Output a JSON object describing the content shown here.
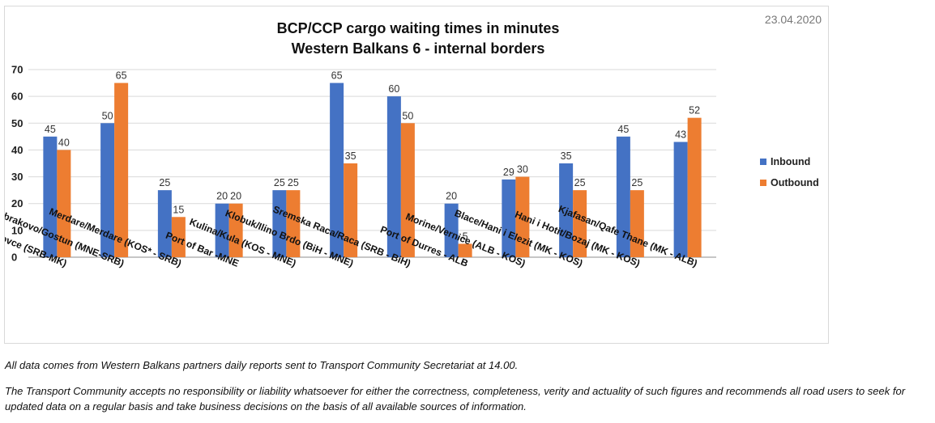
{
  "chart_data": {
    "type": "bar",
    "title": "BCP/CCP cargo waiting times in minutes",
    "subtitle": "Western Balkans 6 - internal borders",
    "date": "23.04.2020",
    "categories": [
      "Presevo/ Tabanovce (SRB-MK)",
      "Dobrakovo/Gostun (MNE-SRB)",
      "Merdare/Merdare (KOS* - SRB)",
      "Port of Bar -MNE",
      "Kulina/Kula (KOS - MNE)",
      "Klobuk/Ilino Brdo (BiH - MNE)",
      "Sremska Raca/Raca (SRB - BiH)",
      "Port of Durres - ALB",
      "Morine/Vernice (ALB - KOS)",
      "Blace/Hani i Elezit (MK - KOS)",
      "Hani i Hotit/Bozaj (MK - KOS)",
      "Kjafasan/Qafe Thane (MK - ALB)"
    ],
    "series": [
      {
        "name": "Inbound",
        "color": "#4472c4",
        "values": [
          45,
          50,
          25,
          20,
          25,
          65,
          60,
          20,
          29,
          35,
          45,
          43
        ]
      },
      {
        "name": "Outbound",
        "color": "#ed7d31",
        "values": [
          40,
          65,
          15,
          20,
          25,
          35,
          50,
          5,
          30,
          25,
          25,
          52
        ]
      }
    ],
    "yticks": [
      "0",
      "10",
      "20",
      "30",
      "40",
      "50",
      "60",
      "70"
    ],
    "ylim": [
      0,
      70
    ],
    "grid": true,
    "legend": "right"
  },
  "footnotes": {
    "source": "All data comes from Western Balkans partners daily reports sent to Transport Community Secretariat at 14.00.",
    "disclaimer": "The Transport Community accepts no responsibility or liability whatsoever for either the correctness, completeness, verity and actuality of such figures and recommends all road users to seek for updated data on a regular basis and take business decisions on the basis of all available sources of information."
  }
}
